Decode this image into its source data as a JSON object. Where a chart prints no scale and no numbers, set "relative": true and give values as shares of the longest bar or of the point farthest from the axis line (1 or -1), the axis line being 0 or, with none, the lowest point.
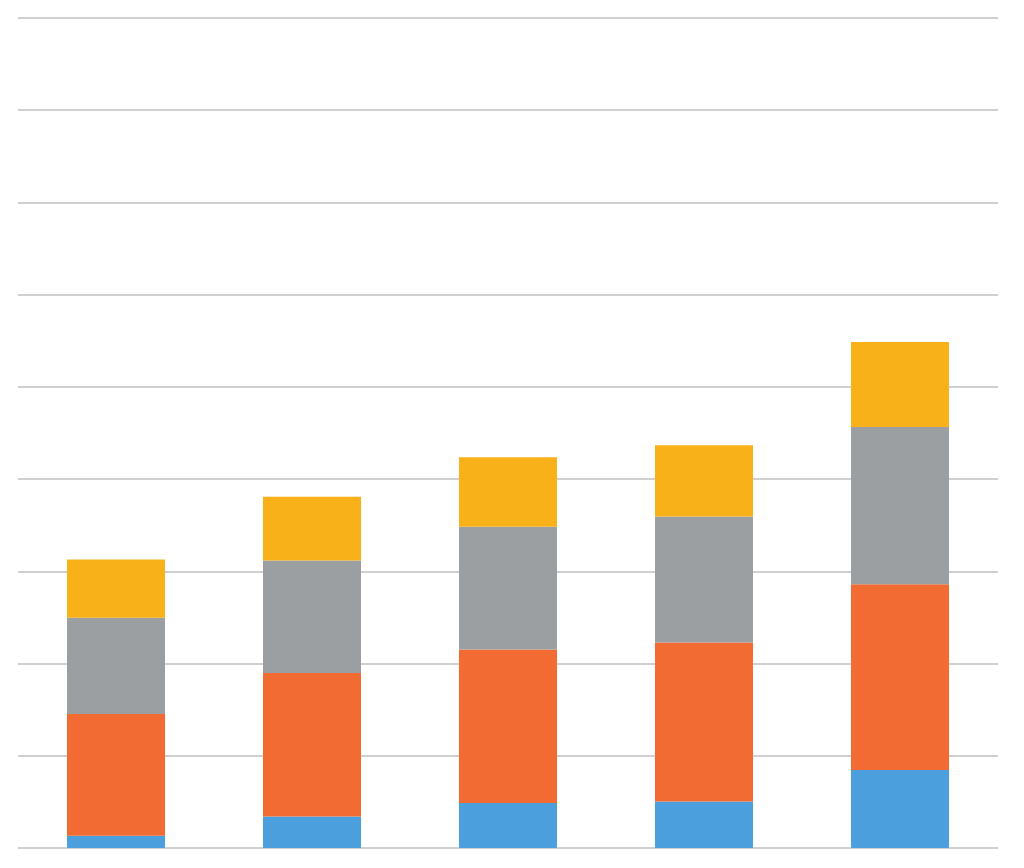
{
  "chart_data": {
    "type": "bar",
    "stacked": true,
    "relative": true,
    "grid": "y",
    "categories": [
      null,
      null,
      null,
      null,
      null
    ],
    "series": [
      {
        "color": "#4a9fdc",
        "values": [
          0.024,
          0.062,
          0.089,
          0.092,
          0.154
        ]
      },
      {
        "color": "#f26b32",
        "values": [
          0.241,
          0.284,
          0.303,
          0.314,
          0.367
        ]
      },
      {
        "color": "#9c9fa2",
        "values": [
          0.19,
          0.222,
          0.243,
          0.249,
          0.311
        ]
      },
      {
        "color": "#f9b11a",
        "values": [
          0.115,
          0.126,
          0.137,
          0.141,
          0.168
        ]
      }
    ]
  }
}
